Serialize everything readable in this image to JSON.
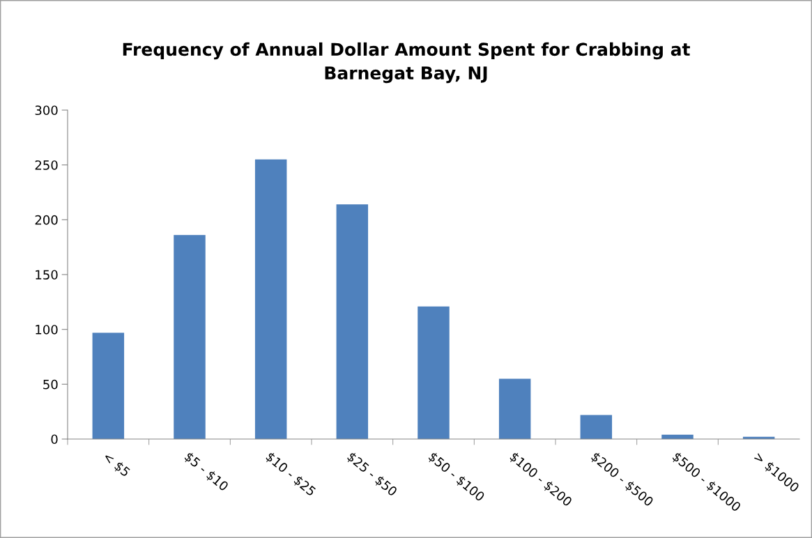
{
  "chart_data": {
    "type": "bar",
    "title": "Frequency of Annual Dollar Amount Spent for Crabbing at\nBarnegat Bay, NJ",
    "categories": [
      "< $5",
      "$5 - $10",
      "$10 - $25",
      "$25 - $50",
      "$50 - $100",
      "$100 - $200",
      "$200 - $500",
      "$500 - $1000",
      "> $1000"
    ],
    "values": [
      97,
      186,
      255,
      214,
      121,
      55,
      22,
      4,
      2
    ],
    "color": "#4f81bd",
    "ylim": [
      0,
      300
    ],
    "yticks": [
      0,
      50,
      100,
      150,
      200,
      250,
      300
    ],
    "grid": false,
    "legend": false
  }
}
